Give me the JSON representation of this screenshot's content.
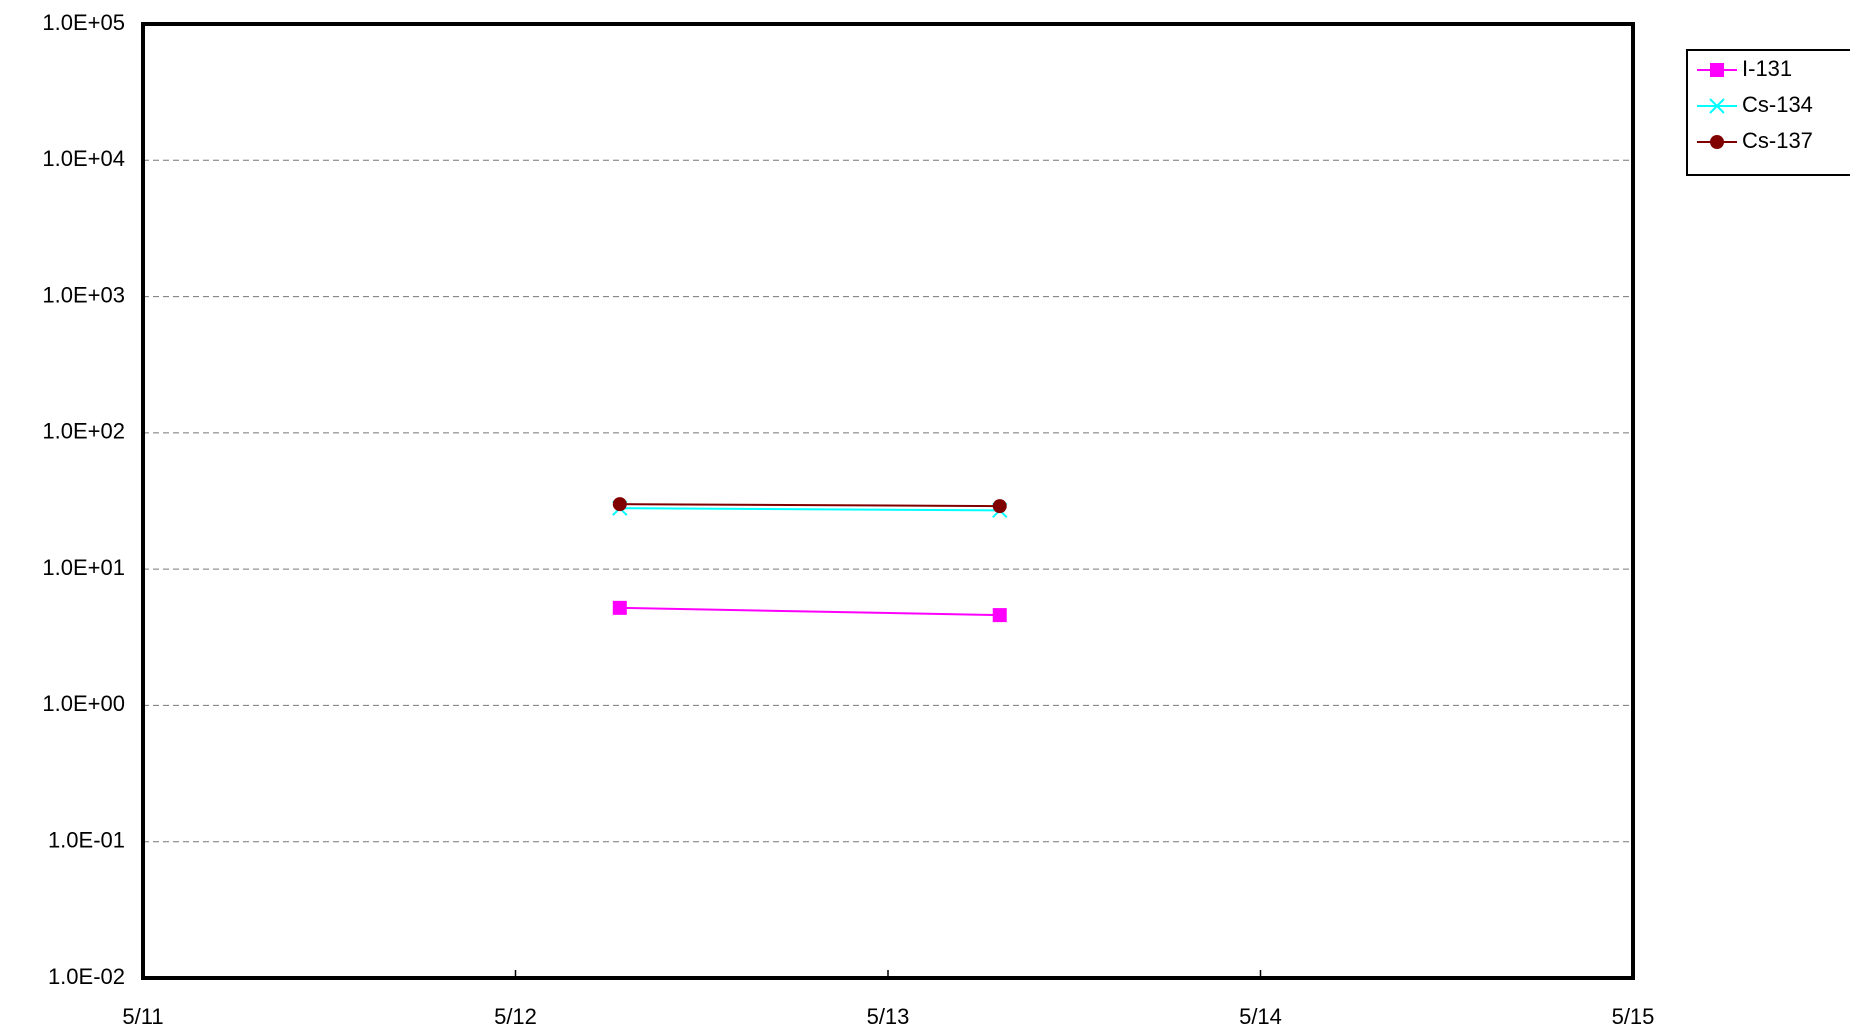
{
  "chart_data": {
    "type": "line",
    "x": [
      12.28,
      13.3
    ],
    "series": [
      {
        "name": "I-131",
        "color": "#ff00ff",
        "marker": "square",
        "values": [
          5.2,
          4.6
        ]
      },
      {
        "name": "Cs-134",
        "color": "#00ffff",
        "marker": "x",
        "values": [
          28,
          27
        ]
      },
      {
        "name": "Cs-137",
        "color": "#800000",
        "marker": "circle",
        "values": [
          30,
          29
        ]
      }
    ],
    "xlim": [
      11,
      15
    ],
    "xticks": [
      {
        "value": 11,
        "label": "5/11"
      },
      {
        "value": 12,
        "label": "5/12"
      },
      {
        "value": 13,
        "label": "5/13"
      },
      {
        "value": 14,
        "label": "5/14"
      },
      {
        "value": 15,
        "label": "5/15"
      }
    ],
    "ylim": [
      0.01,
      100000
    ],
    "yticks": [
      {
        "value": 0.01,
        "label": "1.0E-02"
      },
      {
        "value": 0.1,
        "label": "1.0E-01"
      },
      {
        "value": 1,
        "label": "1.0E+00"
      },
      {
        "value": 10,
        "label": "1.0E+01"
      },
      {
        "value": 100,
        "label": "1.0E+02"
      },
      {
        "value": 1000,
        "label": "1.0E+03"
      },
      {
        "value": 10000,
        "label": "1.0E+04"
      },
      {
        "value": 100000,
        "label": "1.0E+05"
      }
    ],
    "ylog": true,
    "grid": true,
    "legend": "right"
  }
}
